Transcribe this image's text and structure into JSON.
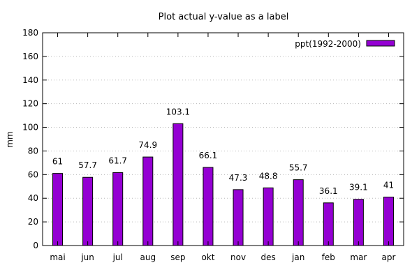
{
  "chart_data": {
    "type": "bar",
    "title": "Plot actual y-value as a label",
    "xlabel": "",
    "ylabel": "mm",
    "ylim": [
      0,
      180
    ],
    "yticks": [
      0,
      20,
      40,
      60,
      80,
      100,
      120,
      140,
      160,
      180
    ],
    "grid": "horizontal dotted",
    "legend_position": "top-right",
    "categories": [
      "mai",
      "jun",
      "jul",
      "aug",
      "sep",
      "okt",
      "nov",
      "des",
      "jan",
      "feb",
      "mar",
      "apr"
    ],
    "series": [
      {
        "name": "ppt(1992-2000)",
        "color": "#9400D3",
        "values": [
          61,
          57.7,
          61.7,
          74.9,
          103.1,
          66.1,
          47.3,
          48.8,
          55.7,
          36.1,
          39.1,
          41
        ],
        "labels": [
          "61",
          "57.7",
          "61.7",
          "74.9",
          "103.1",
          "66.1",
          "47.3",
          "48.8",
          "55.7",
          "36.1",
          "39.1",
          "41"
        ]
      }
    ]
  }
}
